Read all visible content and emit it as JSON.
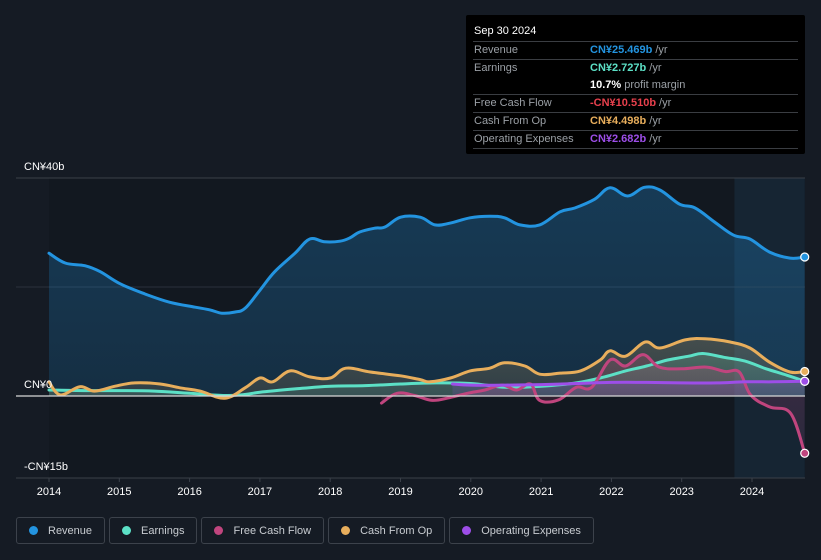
{
  "tooltip": {
    "date": "Sep 30 2024",
    "rows": [
      {
        "label": "Revenue",
        "value": "CN¥25.469b",
        "unit": "/yr",
        "color": "#2394e0"
      },
      {
        "label": "Earnings",
        "value": "CN¥2.727b",
        "unit": "/yr",
        "color": "#5ce0c6"
      },
      {
        "label": "",
        "value": "10.7%",
        "unit": "profit margin",
        "color": "#ffffff"
      },
      {
        "label": "Free Cash Flow",
        "value": "-CN¥10.510b",
        "unit": "/yr",
        "color": "#e8404d"
      },
      {
        "label": "Cash From Op",
        "value": "CN¥4.498b",
        "unit": "/yr",
        "color": "#e8ae5c"
      },
      {
        "label": "Operating Expenses",
        "value": "CN¥2.682b",
        "unit": "/yr",
        "color": "#9d4ee8"
      }
    ]
  },
  "legend": [
    {
      "label": "Revenue",
      "color": "#2394e0"
    },
    {
      "label": "Earnings",
      "color": "#5ce0c6"
    },
    {
      "label": "Free Cash Flow",
      "color": "#c0457e"
    },
    {
      "label": "Cash From Op",
      "color": "#e8ae5c"
    },
    {
      "label": "Operating Expenses",
      "color": "#9d4ee8"
    }
  ],
  "chart_data": {
    "type": "line",
    "title": "",
    "xlabel": "",
    "ylabel": "",
    "unit": "CN¥ billions",
    "ylim": [
      -15,
      40
    ],
    "xlim": [
      2013.6,
      2024.95
    ],
    "y_tick_labels": [
      {
        "value": 40,
        "label": "CN¥40b"
      },
      {
        "value": 0,
        "label": "CN¥0"
      },
      {
        "value": -15,
        "label": "-CN¥15b"
      }
    ],
    "gridlines": [
      40,
      20,
      0
    ],
    "x_ticks": [
      2014,
      2015,
      2016,
      2017,
      2018,
      2019,
      2020,
      2021,
      2022,
      2023,
      2024
    ],
    "highlight_range": [
      2023.75,
      2024.75
    ],
    "legend_position": "bottom-left",
    "series": [
      {
        "name": "Revenue",
        "color": "#2394e0",
        "fill": true,
        "points": [
          [
            2014.0,
            26.2
          ],
          [
            2014.23,
            24.4
          ],
          [
            2014.51,
            23.9
          ],
          [
            2014.73,
            22.8
          ],
          [
            2015.01,
            20.6
          ],
          [
            2015.37,
            18.7
          ],
          [
            2015.72,
            17.2
          ],
          [
            2016.08,
            16.3
          ],
          [
            2016.29,
            15.8
          ],
          [
            2016.46,
            15.2
          ],
          [
            2016.64,
            15.4
          ],
          [
            2016.79,
            16.1
          ],
          [
            2017.0,
            19.4
          ],
          [
            2017.21,
            22.8
          ],
          [
            2017.5,
            26.2
          ],
          [
            2017.71,
            28.8
          ],
          [
            2017.92,
            28.3
          ],
          [
            2018.14,
            28.4
          ],
          [
            2018.28,
            29.0
          ],
          [
            2018.42,
            30.1
          ],
          [
            2018.64,
            30.8
          ],
          [
            2018.78,
            31.0
          ],
          [
            2019.0,
            32.8
          ],
          [
            2019.28,
            32.8
          ],
          [
            2019.49,
            31.4
          ],
          [
            2019.7,
            31.7
          ],
          [
            2019.99,
            32.7
          ],
          [
            2020.27,
            33.0
          ],
          [
            2020.48,
            32.7
          ],
          [
            2020.7,
            31.4
          ],
          [
            2020.98,
            31.4
          ],
          [
            2021.27,
            33.8
          ],
          [
            2021.48,
            34.5
          ],
          [
            2021.76,
            36.1
          ],
          [
            2021.98,
            38.2
          ],
          [
            2022.23,
            36.7
          ],
          [
            2022.47,
            38.3
          ],
          [
            2022.69,
            37.8
          ],
          [
            2022.97,
            35.2
          ],
          [
            2023.19,
            34.5
          ],
          [
            2023.47,
            31.9
          ],
          [
            2023.74,
            29.5
          ],
          [
            2023.97,
            28.8
          ],
          [
            2024.25,
            26.4
          ],
          [
            2024.54,
            25.3
          ],
          [
            2024.75,
            25.5
          ]
        ]
      },
      {
        "name": "Earnings",
        "color": "#5ce0c6",
        "fill": true,
        "points": [
          [
            2014.0,
            1.1
          ],
          [
            2014.5,
            1.0
          ],
          [
            2015.0,
            1.0
          ],
          [
            2015.5,
            0.9
          ],
          [
            2016.0,
            0.5
          ],
          [
            2016.5,
            0.1
          ],
          [
            2016.8,
            0.3
          ],
          [
            2017.0,
            0.7
          ],
          [
            2017.5,
            1.3
          ],
          [
            2018.0,
            1.8
          ],
          [
            2018.5,
            1.9
          ],
          [
            2019.0,
            2.2
          ],
          [
            2019.5,
            2.4
          ],
          [
            2020.0,
            2.3
          ],
          [
            2020.5,
            1.6
          ],
          [
            2021.0,
            1.8
          ],
          [
            2021.5,
            2.4
          ],
          [
            2021.9,
            3.5
          ],
          [
            2022.2,
            4.6
          ],
          [
            2022.5,
            5.5
          ],
          [
            2022.8,
            6.6
          ],
          [
            2023.1,
            7.3
          ],
          [
            2023.3,
            7.8
          ],
          [
            2023.6,
            7.1
          ],
          [
            2023.9,
            6.4
          ],
          [
            2024.2,
            5.0
          ],
          [
            2024.5,
            3.8
          ],
          [
            2024.75,
            2.7
          ]
        ]
      },
      {
        "name": "Free Cash Flow",
        "color": "#c0457e",
        "fill": true,
        "points": [
          [
            2018.73,
            -1.3
          ],
          [
            2018.95,
            0.5
          ],
          [
            2019.2,
            0.1
          ],
          [
            2019.45,
            -0.8
          ],
          [
            2019.7,
            -0.3
          ],
          [
            2019.95,
            0.5
          ],
          [
            2020.2,
            1.1
          ],
          [
            2020.45,
            2.0
          ],
          [
            2020.65,
            1.1
          ],
          [
            2020.85,
            2.2
          ],
          [
            2020.98,
            -0.8
          ],
          [
            2021.25,
            -0.7
          ],
          [
            2021.5,
            1.6
          ],
          [
            2021.72,
            1.6
          ],
          [
            2021.98,
            6.6
          ],
          [
            2022.2,
            5.5
          ],
          [
            2022.45,
            7.6
          ],
          [
            2022.68,
            5.3
          ],
          [
            2023.0,
            5.0
          ],
          [
            2023.35,
            5.3
          ],
          [
            2023.62,
            4.5
          ],
          [
            2023.82,
            4.4
          ],
          [
            2023.98,
            0.2
          ],
          [
            2024.25,
            -2.0
          ],
          [
            2024.55,
            -3.2
          ],
          [
            2024.75,
            -10.5
          ]
        ]
      },
      {
        "name": "Cash From Op",
        "color": "#e8ae5c",
        "fill": true,
        "points": [
          [
            2014.0,
            2.6
          ],
          [
            2014.16,
            0.2
          ],
          [
            2014.44,
            1.7
          ],
          [
            2014.65,
            0.9
          ],
          [
            2014.94,
            1.8
          ],
          [
            2015.22,
            2.4
          ],
          [
            2015.58,
            2.2
          ],
          [
            2015.86,
            1.5
          ],
          [
            2016.15,
            0.9
          ],
          [
            2016.5,
            -0.4
          ],
          [
            2016.79,
            1.5
          ],
          [
            2017.0,
            3.3
          ],
          [
            2017.18,
            2.6
          ],
          [
            2017.43,
            4.6
          ],
          [
            2017.71,
            3.5
          ],
          [
            2018.0,
            3.3
          ],
          [
            2018.22,
            5.1
          ],
          [
            2018.57,
            4.4
          ],
          [
            2019.0,
            3.7
          ],
          [
            2019.28,
            3.0
          ],
          [
            2019.42,
            2.6
          ],
          [
            2019.71,
            3.3
          ],
          [
            2019.99,
            4.6
          ],
          [
            2020.27,
            5.1
          ],
          [
            2020.48,
            6.1
          ],
          [
            2020.77,
            5.5
          ],
          [
            2020.98,
            4.0
          ],
          [
            2021.27,
            4.2
          ],
          [
            2021.56,
            4.6
          ],
          [
            2021.84,
            6.6
          ],
          [
            2021.98,
            8.3
          ],
          [
            2022.2,
            7.3
          ],
          [
            2022.48,
            9.9
          ],
          [
            2022.69,
            8.8
          ],
          [
            2023.05,
            10.3
          ],
          [
            2023.33,
            10.5
          ],
          [
            2023.69,
            9.9
          ],
          [
            2023.97,
            8.8
          ],
          [
            2024.25,
            6.2
          ],
          [
            2024.54,
            4.4
          ],
          [
            2024.75,
            4.5
          ]
        ]
      },
      {
        "name": "Operating Expenses",
        "color": "#9d4ee8",
        "fill": true,
        "points": [
          [
            2019.74,
            2.2
          ],
          [
            2020.0,
            2.0
          ],
          [
            2020.5,
            2.0
          ],
          [
            2021.0,
            2.1
          ],
          [
            2021.5,
            2.3
          ],
          [
            2022.0,
            2.5
          ],
          [
            2022.5,
            2.5
          ],
          [
            2023.0,
            2.4
          ],
          [
            2023.5,
            2.4
          ],
          [
            2023.9,
            2.6
          ],
          [
            2024.3,
            2.6
          ],
          [
            2024.75,
            2.7
          ]
        ]
      }
    ]
  }
}
